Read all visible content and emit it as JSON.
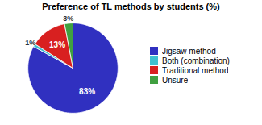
{
  "chart_data": {
    "type": "pie",
    "title": "Preference of TL methods by students (%)",
    "categories": [
      "Jigsaw method",
      "Both (combination)",
      "Traditional method",
      "Unsure"
    ],
    "values": [
      83,
      1,
      13,
      3
    ],
    "value_labels": [
      "83%",
      "1%",
      "13%",
      "3%"
    ],
    "colors": [
      "#3030c0",
      "#40c0d0",
      "#d82020",
      "#40a040"
    ],
    "data_labels": true,
    "legend": "right"
  }
}
